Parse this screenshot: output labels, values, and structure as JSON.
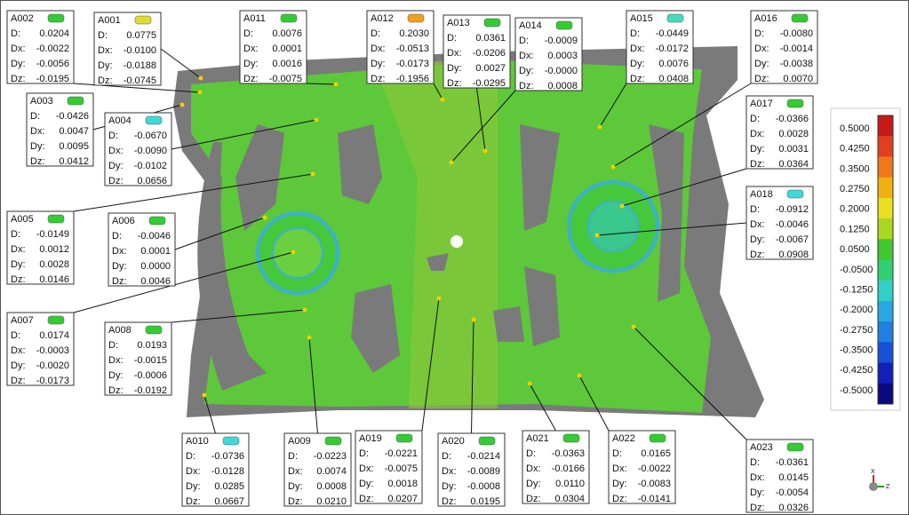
{
  "labels": {
    "d": "D:",
    "dx": "Dx:",
    "dy": "Dy:",
    "dz": "Dz:"
  },
  "annotations": [
    {
      "id": "A002",
      "d": "0.0204",
      "dx": "-0.0022",
      "dy": "-0.0056",
      "dz": "-0.0195",
      "color": "#33cc33"
    },
    {
      "id": "A001",
      "d": "0.0775",
      "dx": "-0.0100",
      "dy": "-0.0188",
      "dz": "-0.0745",
      "color": "#e0dc30"
    },
    {
      "id": "A011",
      "d": "0.0076",
      "dx": "0.0001",
      "dy": "0.0016",
      "dz": "-0.0075",
      "color": "#33cc33"
    },
    {
      "id": "A012",
      "d": "0.2030",
      "dx": "-0.0513",
      "dy": "-0.0173",
      "dz": "-0.1956",
      "color": "#f0a020"
    },
    {
      "id": "A013",
      "d": "0.0361",
      "dx": "-0.0206",
      "dy": "0.0027",
      "dz": "-0.0295",
      "color": "#33cc33"
    },
    {
      "id": "A014",
      "d": "-0.0009",
      "dx": "0.0003",
      "dy": "-0.0000",
      "dz": "0.0008",
      "color": "#33cc33"
    },
    {
      "id": "A015",
      "d": "-0.0449",
      "dx": "-0.0172",
      "dy": "0.0076",
      "dz": "0.0408",
      "color": "#44ddbb"
    },
    {
      "id": "A016",
      "d": "-0.0080",
      "dx": "-0.0014",
      "dy": "-0.0038",
      "dz": "0.0070",
      "color": "#33cc33"
    },
    {
      "id": "A003",
      "d": "-0.0426",
      "dx": "0.0047",
      "dy": "0.0095",
      "dz": "0.0412",
      "color": "#33cc33"
    },
    {
      "id": "A004",
      "d": "-0.0670",
      "dx": "-0.0090",
      "dy": "-0.0102",
      "dz": "0.0656",
      "color": "#40d8d8"
    },
    {
      "id": "A017",
      "d": "-0.0366",
      "dx": "0.0028",
      "dy": "0.0031",
      "dz": "0.0364",
      "color": "#33cc33"
    },
    {
      "id": "A005",
      "d": "-0.0149",
      "dx": "0.0012",
      "dy": "0.0028",
      "dz": "0.0146",
      "color": "#33cc33"
    },
    {
      "id": "A006",
      "d": "-0.0046",
      "dx": "0.0001",
      "dy": "0.0000",
      "dz": "0.0046",
      "color": "#33cc33"
    },
    {
      "id": "A018",
      "d": "-0.0912",
      "dx": "-0.0046",
      "dy": "-0.0067",
      "dz": "0.0908",
      "color": "#40d8d8"
    },
    {
      "id": "A007",
      "d": "0.0174",
      "dx": "-0.0003",
      "dy": "-0.0020",
      "dz": "-0.0173",
      "color": "#33cc33"
    },
    {
      "id": "A008",
      "d": "0.0193",
      "dx": "-0.0015",
      "dy": "-0.0006",
      "dz": "-0.0192",
      "color": "#33cc33"
    },
    {
      "id": "A010",
      "d": "-0.0736",
      "dx": "-0.0128",
      "dy": "0.0285",
      "dz": "0.0667",
      "color": "#40d8d8"
    },
    {
      "id": "A009",
      "d": "-0.0223",
      "dx": "0.0074",
      "dy": "0.0008",
      "dz": "0.0210",
      "color": "#33cc33"
    },
    {
      "id": "A019",
      "d": "-0.0221",
      "dx": "-0.0075",
      "dy": "0.0018",
      "dz": "0.0207",
      "color": "#33cc33"
    },
    {
      "id": "A020",
      "d": "-0.0214",
      "dx": "-0.0089",
      "dy": "-0.0008",
      "dz": "0.0195",
      "color": "#33cc33"
    },
    {
      "id": "A021",
      "d": "-0.0363",
      "dx": "-0.0166",
      "dy": "0.0110",
      "dz": "0.0304",
      "color": "#33cc33"
    },
    {
      "id": "A022",
      "d": "0.0165",
      "dx": "-0.0022",
      "dy": "-0.0083",
      "dz": "-0.0141",
      "color": "#33cc33"
    },
    {
      "id": "A023",
      "d": "-0.0361",
      "dx": "0.0145",
      "dy": "-0.0054",
      "dz": "0.0326",
      "color": "#33cc33"
    }
  ],
  "color_scale": {
    "labels": [
      "0.5000",
      "0.4250",
      "0.3500",
      "0.2750",
      "0.2000",
      "0.1250",
      "0.0500",
      "-0.0500",
      "-0.1250",
      "-0.2000",
      "-0.2750",
      "-0.3500",
      "-0.4250",
      "-0.5000"
    ],
    "colors": [
      "#c81818",
      "#e04020",
      "#f07818",
      "#f0b010",
      "#e8e020",
      "#a8d820",
      "#40c830",
      "#30d070",
      "#30d0c8",
      "#28a8e0",
      "#2080e0",
      "#1850d8",
      "#1020b8",
      "#0a0a80"
    ]
  },
  "axis_icon": {
    "x": "X",
    "z": "Z"
  }
}
